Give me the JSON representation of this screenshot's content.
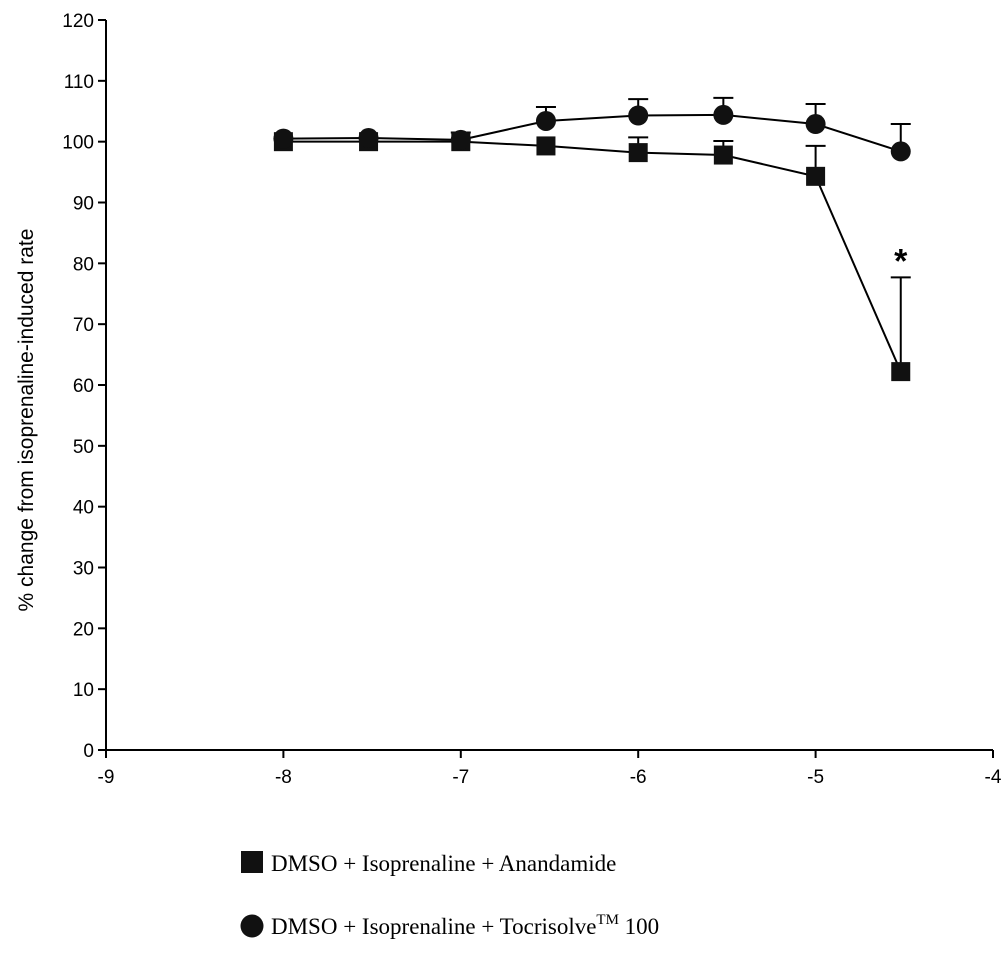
{
  "chart_data": {
    "type": "line",
    "xlabel": "",
    "ylabel": "% change from isoprenaline-induced rate",
    "xlim": [
      -9,
      -4
    ],
    "ylim": [
      0,
      120
    ],
    "x_ticks": [
      -9,
      -8,
      -7,
      -6,
      -5,
      -4
    ],
    "y_ticks": [
      0,
      10,
      20,
      30,
      40,
      50,
      60,
      70,
      80,
      90,
      100,
      110,
      120
    ],
    "grid": false,
    "legend_position": "bottom",
    "series": [
      {
        "name": "DMSO + Isoprenaline + Anandamide",
        "marker": "square",
        "x": [
          -8,
          -7.52,
          -7,
          -6.52,
          -6,
          -5.52,
          -5,
          -4.52
        ],
        "y": [
          100,
          100,
          100,
          99.3,
          98.2,
          97.8,
          94.3,
          62.2
        ],
        "error_plus": [
          0,
          0,
          1.5,
          0,
          2.5,
          2.3,
          5,
          15.5
        ]
      },
      {
        "name": "DMSO + Isoprenaline + Tocrisolve™ 100",
        "name_parts": [
          "DMSO + Isoprenaline + Tocrisolve",
          "TM",
          " 100"
        ],
        "marker": "circle",
        "x": [
          -8,
          -7.52,
          -7,
          -6.52,
          -6,
          -5.52,
          -5,
          -4.52
        ],
        "y": [
          100.5,
          100.6,
          100.3,
          103.4,
          104.3,
          104.4,
          102.9,
          98.4
        ],
        "error_plus": [
          0,
          0,
          0,
          2.3,
          2.7,
          2.8,
          3.3,
          4.5
        ]
      }
    ],
    "annotations": [
      {
        "text": "*",
        "x": -4.52,
        "y": 80.5
      }
    ]
  }
}
